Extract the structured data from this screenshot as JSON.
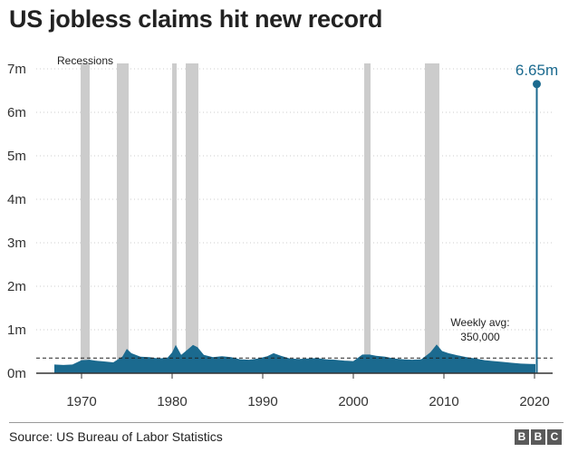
{
  "title": "US jobless claims hit new record",
  "source": "Source: US Bureau of Labor Statistics",
  "logo": [
    "B",
    "B",
    "C"
  ],
  "colors": {
    "area": "#1b6a8f",
    "recession": "#cccccc",
    "axis": "#333333"
  },
  "chart_data": {
    "type": "area",
    "title": "US jobless claims hit new record",
    "xlabel": "",
    "ylabel": "",
    "xlim": [
      1965,
      2022
    ],
    "ylim": [
      0,
      7000000
    ],
    "x_ticks": [
      1970,
      1980,
      1990,
      2000,
      2010,
      2020
    ],
    "y_ticks": [
      {
        "value": 0,
        "label": "0m"
      },
      {
        "value": 1000000,
        "label": "1m"
      },
      {
        "value": 2000000,
        "label": "2m"
      },
      {
        "value": 3000000,
        "label": "3m"
      },
      {
        "value": 4000000,
        "label": "4m"
      },
      {
        "value": 5000000,
        "label": "5m"
      },
      {
        "value": 6000000,
        "label": "6m"
      },
      {
        "value": 7000000,
        "label": "7m"
      }
    ],
    "grid": true,
    "recessions_label": "Recessions",
    "recessions": [
      [
        1969.9,
        1970.9
      ],
      [
        1973.9,
        1975.2
      ],
      [
        1980.0,
        1980.5
      ],
      [
        1981.5,
        1982.9
      ],
      [
        2001.2,
        2001.9
      ],
      [
        2007.9,
        2009.5
      ]
    ],
    "series": [
      {
        "x": [
          1967.0,
          1968.0,
          1969.0,
          1970.0,
          1970.9,
          1971.5,
          1972.5,
          1973.5,
          1974.5,
          1975.0,
          1975.5,
          1976.5,
          1977.5,
          1978.5,
          1979.5,
          1980.0,
          1980.4,
          1981.0,
          1981.8,
          1982.3,
          1982.8,
          1983.5,
          1984.5,
          1985.5,
          1986.5,
          1987.5,
          1988.5,
          1989.5,
          1990.5,
          1991.2,
          1992.0,
          1993.0,
          1994.0,
          1995.0,
          1996.0,
          1997.0,
          1998.0,
          1999.0,
          2000.0,
          2001.0,
          2001.8,
          2002.5,
          2003.5,
          2004.5,
          2005.5,
          2006.5,
          2007.5,
          2008.5,
          2009.2,
          2009.8,
          2010.5,
          2011.5,
          2012.5,
          2013.5,
          2014.5,
          2015.5,
          2016.5,
          2017.5,
          2018.5,
          2019.5,
          2020.1
        ],
        "values": [
          200000,
          190000,
          200000,
          300000,
          310000,
          290000,
          270000,
          250000,
          380000,
          560000,
          460000,
          380000,
          370000,
          340000,
          360000,
          480000,
          650000,
          420000,
          560000,
          650000,
          600000,
          420000,
          370000,
          390000,
          370000,
          320000,
          310000,
          340000,
          390000,
          460000,
          400000,
          340000,
          330000,
          340000,
          350000,
          320000,
          310000,
          290000,
          280000,
          430000,
          430000,
          400000,
          380000,
          340000,
          320000,
          310000,
          320000,
          480000,
          660000,
          510000,
          460000,
          410000,
          370000,
          340000,
          300000,
          280000,
          260000,
          240000,
          220000,
          215000,
          210000
        ]
      }
    ],
    "spike": {
      "x": 2020.25,
      "value": 6650000,
      "label": "6.65m"
    },
    "average": {
      "value": 350000,
      "label": [
        "Weekly avg:",
        "350,000"
      ]
    }
  }
}
